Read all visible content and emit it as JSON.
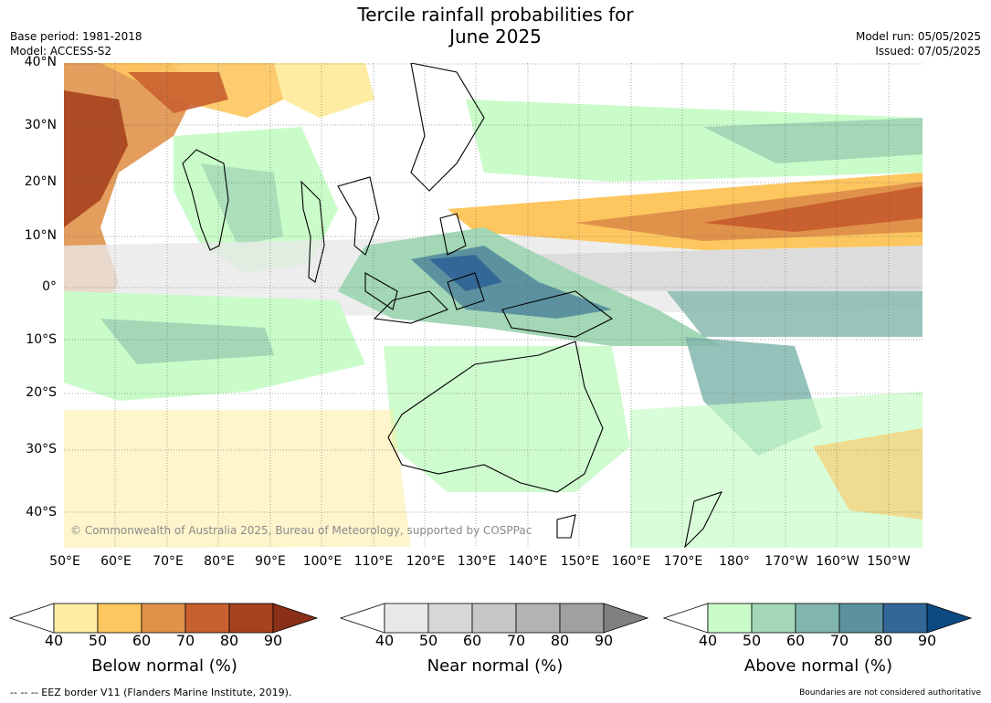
{
  "title": {
    "line1": "Tercile rainfall probabilities for",
    "line2": "June 2025"
  },
  "meta": {
    "base_period": "Base period: 1981-2018",
    "model": "Model: ACCESS-S2",
    "model_run": "Model run: 05/05/2025",
    "issued": "Issued: 07/05/2025"
  },
  "axes": {
    "lat_labels": [
      "40°N",
      "30°N",
      "20°N",
      "10°N",
      "0°",
      "10°S",
      "20°S",
      "30°S",
      "40°S"
    ],
    "lon_labels": [
      "50°E",
      "60°E",
      "70°E",
      "80°E",
      "90°E",
      "100°E",
      "110°E",
      "120°E",
      "130°E",
      "140°E",
      "150°E",
      "160°E",
      "170°E",
      "180°",
      "170°W",
      "160°W",
      "150°W"
    ]
  },
  "copyright": "© Commonwealth of Australia 2025, Bureau of Meteorology, supported by COSPPac",
  "colorbars": [
    {
      "label": "Below normal (%)",
      "ticks": [
        "40",
        "50",
        "60",
        "70",
        "80",
        "90"
      ],
      "colors": [
        "#ffffff",
        "#fdeca2",
        "#fdc65f",
        "#e0924a",
        "#c9602f",
        "#a6421f",
        "#8a2f18"
      ]
    },
    {
      "label": "Near normal (%)",
      "ticks": [
        "40",
        "50",
        "60",
        "70",
        "80",
        "90"
      ],
      "colors": [
        "#ffffff",
        "#e8e8e8",
        "#d7d7d7",
        "#c7c7c7",
        "#b3b3b3",
        "#a0a0a0",
        "#808080"
      ]
    },
    {
      "label": "Above normal (%)",
      "ticks": [
        "40",
        "50",
        "60",
        "70",
        "80",
        "90"
      ],
      "colors": [
        "#ffffff",
        "#c9fcc9",
        "#a3d7b6",
        "#81b6ad",
        "#5c92a0",
        "#336797",
        "#0d4a82"
      ]
    }
  ],
  "footer": {
    "eez": "--  --  -- EEZ border V11 (Flanders Marine Institute, 2019).",
    "boundaries": "Boundaries are not considered authoritative"
  }
}
